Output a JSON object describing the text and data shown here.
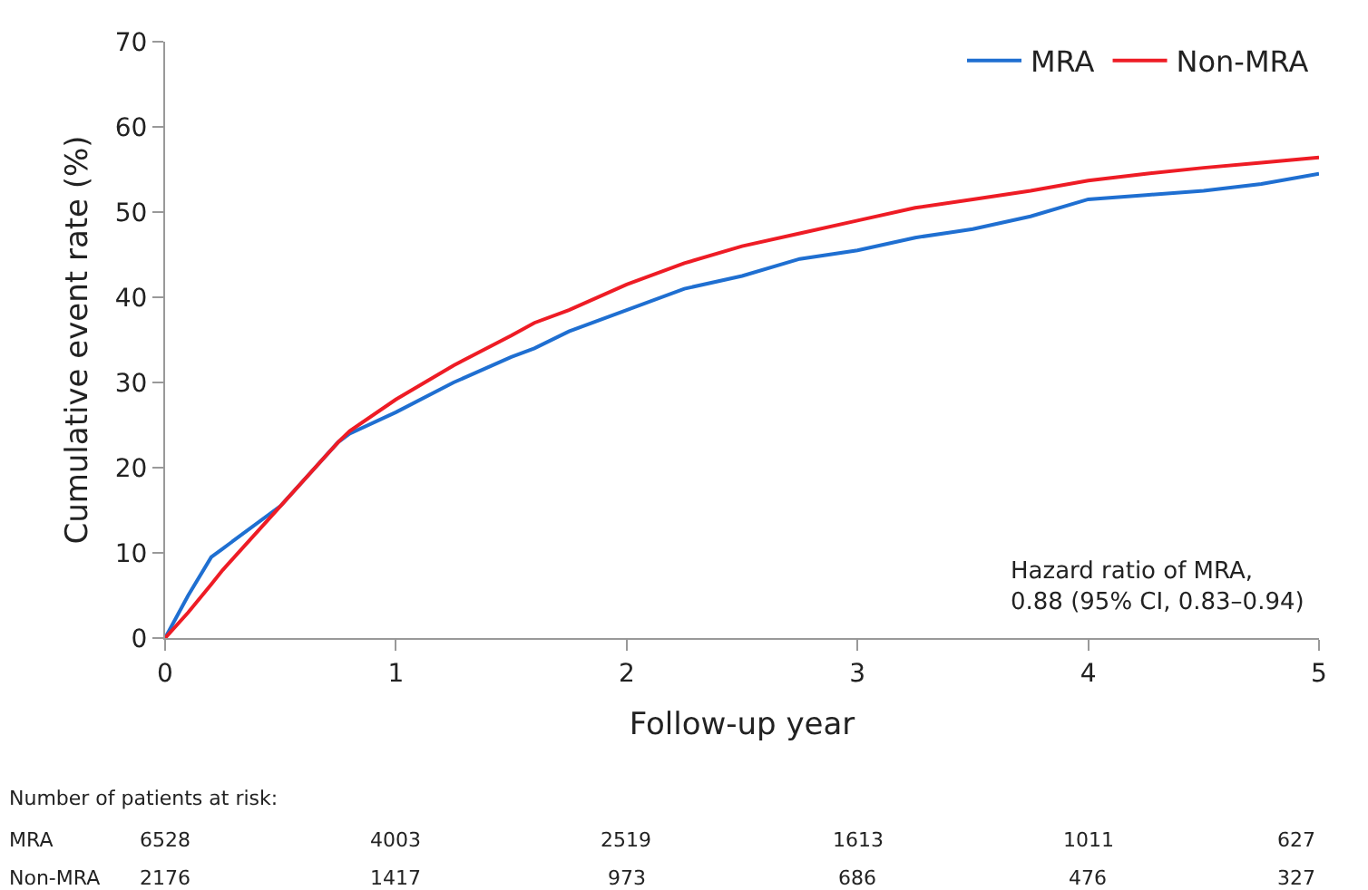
{
  "chart_data": {
    "type": "line",
    "xlabel": "Follow-up year",
    "ylabel": "Cumulative event rate (%)",
    "x": [
      0,
      0.1,
      0.2,
      0.25,
      0.5,
      0.75,
      0.8,
      1.0,
      1.25,
      1.5,
      1.6,
      1.75,
      2.0,
      2.25,
      2.5,
      2.75,
      3.0,
      3.25,
      3.5,
      3.75,
      4.0,
      4.25,
      4.5,
      4.75,
      5.0
    ],
    "series": [
      {
        "name": "MRA",
        "color": "#1f6fd1",
        "values": [
          0,
          5,
          9.5,
          10.5,
          15.5,
          23,
          24,
          26.5,
          30,
          33,
          34,
          36,
          38.5,
          41,
          42.5,
          44.5,
          45.5,
          47,
          48,
          49.5,
          51.5,
          52,
          52.5,
          53.3,
          54.5
        ]
      },
      {
        "name": "Non-MRA",
        "color": "#ee1c25",
        "values": [
          0,
          3,
          6.3,
          8,
          15.5,
          23,
          24.3,
          28,
          32,
          35.5,
          37,
          38.5,
          41.5,
          44,
          46,
          47.5,
          49,
          50.5,
          51.5,
          52.5,
          53.7,
          54.5,
          55.2,
          55.8,
          56.4
        ]
      }
    ],
    "xlim": [
      0,
      5
    ],
    "xticks": [
      0,
      1,
      2,
      3,
      4,
      5
    ],
    "ylim": [
      0,
      70
    ],
    "yticks": [
      0,
      10,
      20,
      30,
      40,
      50,
      60,
      70
    ],
    "legend": "top right",
    "marker": "none",
    "line_style": "solid",
    "annotations": [
      "Hazard ratio of MRA,\n0.88 (95% CI, 0.83–0.94)",
      "Number of patients at risk:",
      "MRA",
      "6528",
      "4003",
      "2519",
      "1613",
      "1011",
      "627",
      "Non-MRA",
      "2176",
      "1417",
      "973",
      "686",
      "476",
      "327"
    ]
  }
}
